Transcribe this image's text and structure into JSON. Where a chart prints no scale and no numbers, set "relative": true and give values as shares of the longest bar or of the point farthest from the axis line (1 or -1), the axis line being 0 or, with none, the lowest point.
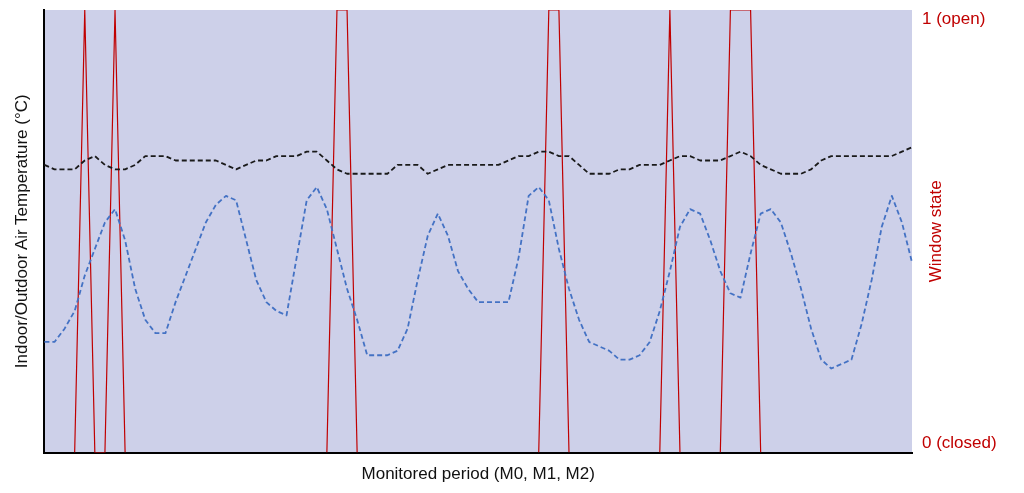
{
  "chart_data": {
    "type": "line",
    "relative": true,
    "xlabel": "Monitored period (M0, M1, M2)",
    "ylabel": "Indoor/Outdoor Air Temperature (°C)",
    "y2label": "Window state",
    "annotations": [
      "1 (open)",
      "0 (closed)"
    ],
    "categories": [
      null,
      null,
      null,
      null,
      null,
      null,
      null,
      null,
      null,
      null,
      null,
      null,
      null,
      null,
      null,
      null,
      null,
      null,
      null,
      null,
      null,
      null,
      null,
      null,
      null,
      null,
      null,
      null,
      null,
      null,
      null,
      null,
      null,
      null,
      null,
      null,
      null,
      null,
      null,
      null,
      null,
      null,
      null,
      null,
      null,
      null,
      null,
      null,
      null,
      null,
      null,
      null,
      null,
      null,
      null,
      null,
      null,
      null,
      null,
      null,
      null,
      null,
      null,
      null,
      null,
      null,
      null,
      null,
      null,
      null,
      null,
      null,
      null,
      null,
      null,
      null,
      null,
      null,
      null,
      null,
      null,
      null,
      null,
      null,
      null,
      null,
      null
    ],
    "series": [
      {
        "color": "#1a1a1a",
        "line_style": "dashed",
        "values": [
          0.65,
          0.64,
          0.64,
          0.64,
          0.66,
          0.67,
          0.65,
          0.64,
          0.64,
          0.65,
          0.67,
          0.67,
          0.67,
          0.66,
          0.66,
          0.66,
          0.66,
          0.66,
          0.65,
          0.64,
          0.65,
          0.66,
          0.66,
          0.67,
          0.67,
          0.67,
          0.68,
          0.68,
          0.66,
          0.64,
          0.63,
          0.63,
          0.63,
          0.63,
          0.63,
          0.65,
          0.65,
          0.65,
          0.63,
          0.64,
          0.65,
          0.65,
          0.65,
          0.65,
          0.65,
          0.65,
          0.66,
          0.67,
          0.67,
          0.68,
          0.68,
          0.67,
          0.67,
          0.65,
          0.63,
          0.63,
          0.63,
          0.64,
          0.64,
          0.65,
          0.65,
          0.65,
          0.66,
          0.67,
          0.67,
          0.66,
          0.66,
          0.66,
          0.67,
          0.68,
          0.67,
          0.65,
          0.64,
          0.63,
          0.63,
          0.63,
          0.64,
          0.66,
          0.67,
          0.67,
          0.67,
          0.67,
          0.67,
          0.67,
          0.67,
          0.68,
          0.69
        ]
      },
      {
        "color": "#4472c4",
        "line_style": "dashed",
        "values": [
          0.25,
          0.25,
          0.28,
          0.32,
          0.4,
          0.46,
          0.52,
          0.55,
          0.48,
          0.37,
          0.3,
          0.27,
          0.27,
          0.34,
          0.4,
          0.46,
          0.52,
          0.56,
          0.58,
          0.57,
          0.48,
          0.39,
          0.34,
          0.32,
          0.31,
          0.44,
          0.57,
          0.6,
          0.55,
          0.46,
          0.37,
          0.3,
          0.22,
          0.22,
          0.22,
          0.23,
          0.28,
          0.39,
          0.49,
          0.54,
          0.49,
          0.41,
          0.37,
          0.34,
          0.34,
          0.34,
          0.34,
          0.44,
          0.58,
          0.6,
          0.57,
          0.46,
          0.37,
          0.3,
          0.25,
          0.24,
          0.23,
          0.21,
          0.21,
          0.22,
          0.25,
          0.32,
          0.41,
          0.51,
          0.55,
          0.54,
          0.48,
          0.41,
          0.36,
          0.35,
          0.45,
          0.54,
          0.55,
          0.52,
          0.45,
          0.37,
          0.28,
          0.21,
          0.19,
          0.2,
          0.21,
          0.29,
          0.39,
          0.51,
          0.58,
          0.52,
          0.43
        ]
      },
      {
        "color": "#c00000",
        "line_style": "solid",
        "values": [
          null,
          null,
          null,
          0,
          1,
          0,
          0,
          1,
          0,
          null,
          null,
          null,
          null,
          null,
          null,
          null,
          null,
          null,
          null,
          null,
          null,
          null,
          null,
          null,
          null,
          null,
          null,
          null,
          0,
          1,
          1,
          0,
          null,
          null,
          null,
          null,
          null,
          null,
          null,
          null,
          null,
          null,
          null,
          null,
          null,
          null,
          null,
          null,
          null,
          0,
          1,
          1,
          0,
          null,
          null,
          null,
          null,
          null,
          null,
          null,
          null,
          0,
          1,
          0,
          null,
          null,
          null,
          0,
          1,
          1,
          1,
          0,
          null,
          null,
          null,
          null,
          null,
          null,
          null,
          null,
          null,
          null,
          null,
          null,
          null,
          null,
          null
        ]
      }
    ]
  }
}
